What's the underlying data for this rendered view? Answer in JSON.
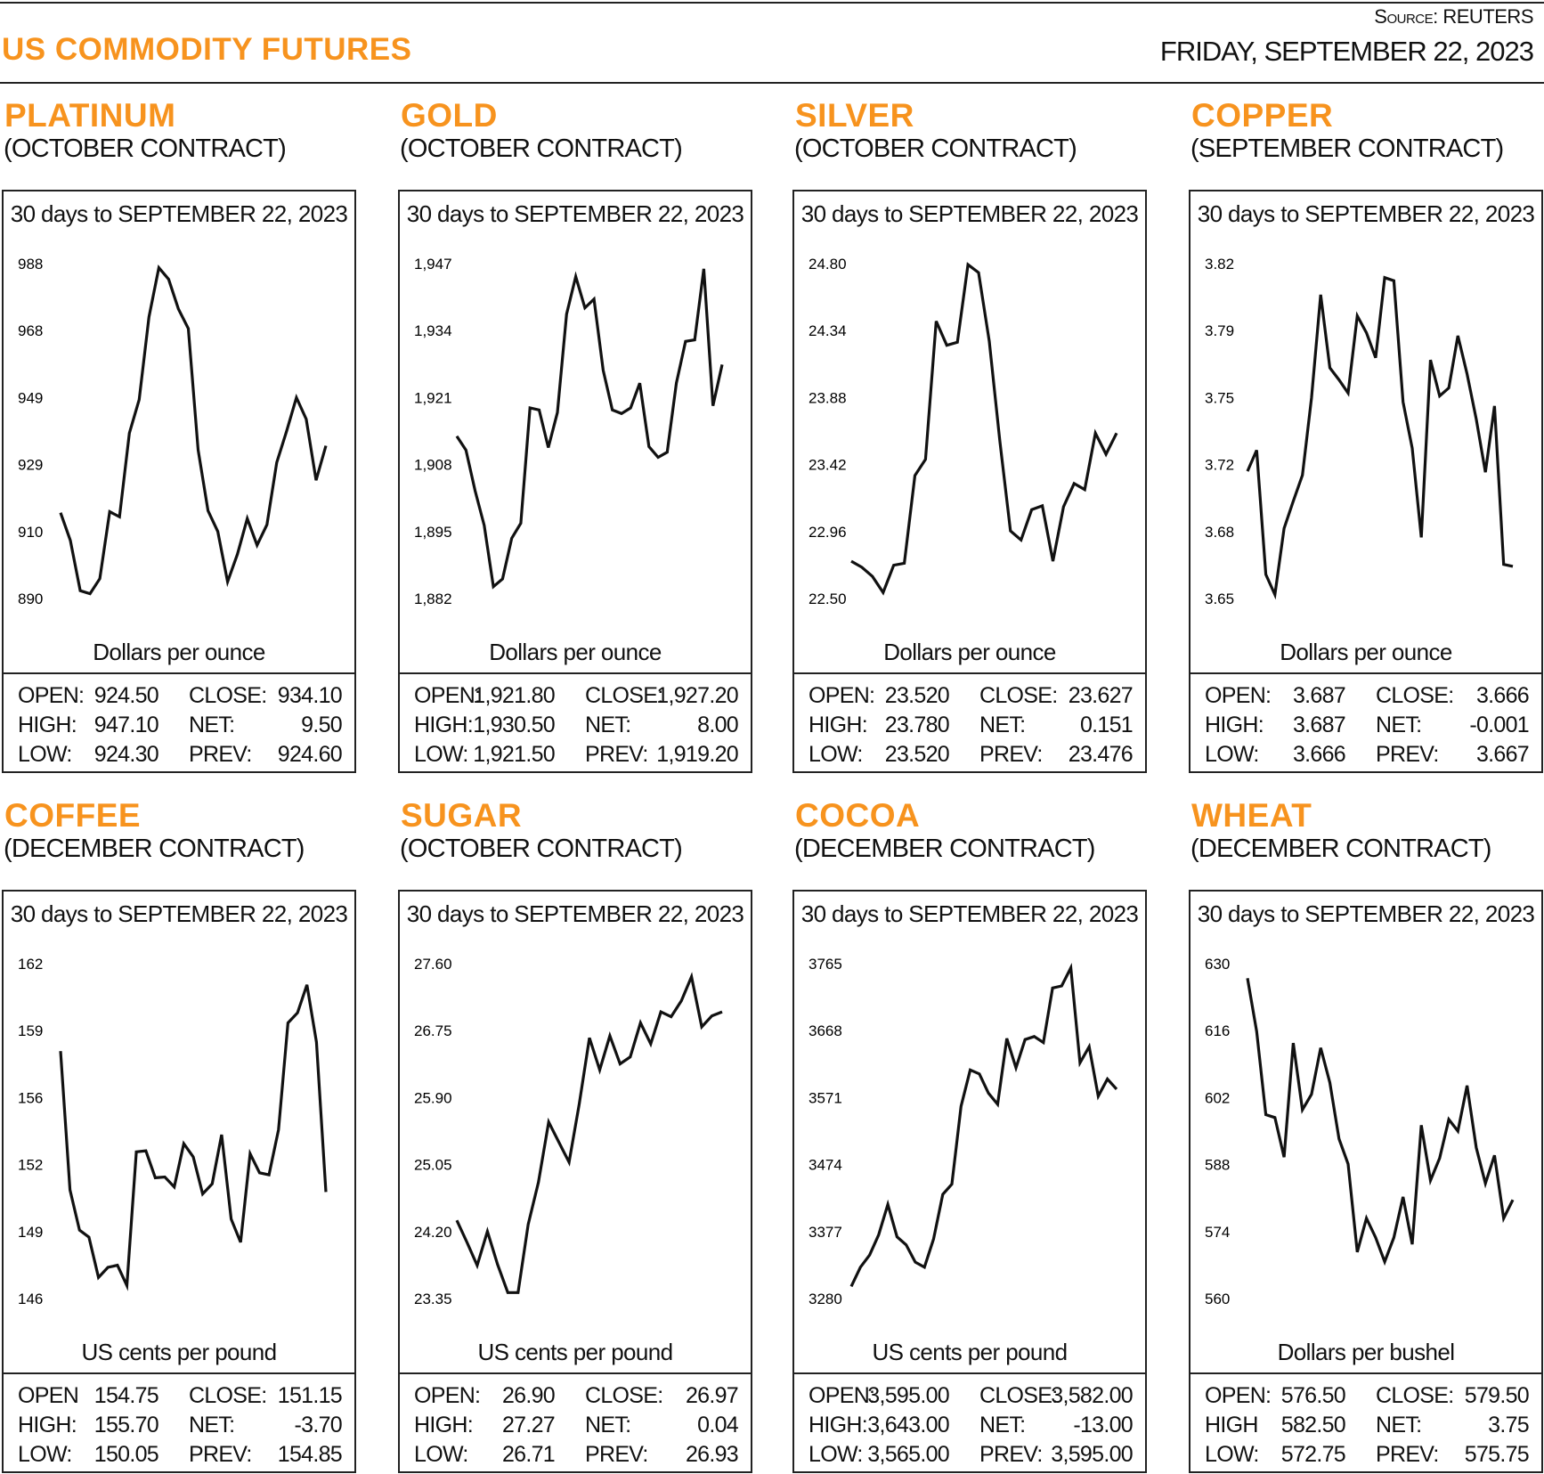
{
  "header": {
    "title": "US COMMODITY FUTURES",
    "source": "Source: REUTERS",
    "date": "FRIDAY, SEPTEMBER 22, 2023"
  },
  "colors": {
    "accent": "#f7931e",
    "line": "#111111"
  },
  "chart_data": [
    {
      "type": "line",
      "title": "PLATINUM",
      "subtitle": "(OCTOBER CONTRACT)",
      "caption": "30 days to SEPTEMBER 22, 2023",
      "ylabel": "Dollars per ounce",
      "yticks": [
        "988",
        "968",
        "949",
        "929",
        "910",
        "890"
      ],
      "ylim": [
        890,
        988
      ],
      "values": [
        915.1,
        907.0,
        892.3,
        891.4,
        895.8,
        915.4,
        913.9,
        938.4,
        948.2,
        972.4,
        986.8,
        983.4,
        974.7,
        969.0,
        933.5,
        915.7,
        909.6,
        894.9,
        903.0,
        913.4,
        905.6,
        911.6,
        929.8,
        939.0,
        948.8,
        942.5,
        924.6,
        934.7
      ],
      "stats": {
        "open_label": "OPEN:",
        "open": "924.50",
        "high_label": "HIGH:",
        "high": "947.10",
        "low_label": "LOW:",
        "low": "924.30",
        "close_label": "CLOSE:",
        "close": "934.10",
        "net_label": "NET:",
        "net": "9.50",
        "prev_label": "PREV:",
        "prev": "924.60"
      }
    },
    {
      "type": "line",
      "title": "GOLD",
      "subtitle": "(OCTOBER CONTRACT)",
      "caption": "30 days to SEPTEMBER 22, 2023",
      "ylabel": "Dollars per ounce",
      "yticks": [
        "1,947",
        "1,934",
        "1,921",
        "1,908",
        "1,895",
        "1,882"
      ],
      "ylim": [
        1882,
        1947
      ],
      "values": [
        1913.5,
        1910.8,
        1902.9,
        1896.2,
        1884.3,
        1885.8,
        1893.7,
        1896.6,
        1919.0,
        1918.6,
        1911.3,
        1918.1,
        1937.2,
        1944.5,
        1938.4,
        1940.1,
        1926.3,
        1918.6,
        1917.9,
        1919.0,
        1923.8,
        1911.5,
        1909.4,
        1910.4,
        1923.8,
        1931.9,
        1932.2,
        1946.0,
        1919.4,
        1927.4
      ],
      "stats": {
        "open_label": "OPEN:",
        "open": "1,921.80",
        "high_label": "HIGH:",
        "high": "1,930.50",
        "low_label": "LOW:",
        "low": "1,921.50",
        "close_label": "CLOSE:",
        "close": "1,927.20",
        "net_label": "NET:",
        "net": "8.00",
        "prev_label": "PREV:",
        "prev": "1,919.20"
      }
    },
    {
      "type": "line",
      "title": "SILVER",
      "subtitle": "(OCTOBER CONTRACT)",
      "caption": "30 days to SEPTEMBER 22, 2023",
      "ylabel": "Dollars per ounce",
      "yticks": [
        "24.80",
        "24.34",
        "23.88",
        "23.42",
        "22.96",
        "22.50"
      ],
      "ylim": [
        22.5,
        24.8
      ],
      "values": [
        22.756,
        22.715,
        22.652,
        22.541,
        22.729,
        22.742,
        23.345,
        23.456,
        24.405,
        24.239,
        24.26,
        24.793,
        24.738,
        24.267,
        23.581,
        22.964,
        22.902,
        23.11,
        23.137,
        22.756,
        23.13,
        23.29,
        23.248,
        23.636,
        23.491,
        23.636
      ],
      "stats": {
        "open_label": "OPEN:",
        "open": "23.520",
        "high_label": "HIGH:",
        "high": "23.780",
        "low_label": "LOW:",
        "low": "23.520",
        "close_label": "CLOSE:",
        "close": "23.627",
        "net_label": "NET:",
        "net": "0.151",
        "prev_label": "PREV:",
        "prev": "23.476"
      }
    },
    {
      "type": "line",
      "title": "COPPER",
      "subtitle": "(SEPTEMBER CONTRACT)",
      "caption": "30 days to SEPTEMBER 22, 2023",
      "ylabel": "Dollars per ounce",
      "yticks": [
        "3.82",
        "3.79",
        "3.75",
        "3.72",
        "3.68",
        "3.65"
      ],
      "ylim": [
        3.65,
        3.82
      ],
      "values": [
        3.7146,
        3.7253,
        3.6622,
        3.652,
        3.6856,
        3.6994,
        3.7126,
        3.7518,
        3.8042,
        3.7671,
        3.761,
        3.7543,
        3.7935,
        3.7849,
        3.7722,
        3.8129,
        3.8113,
        3.7498,
        3.7263,
        3.681,
        3.7711,
        3.7528,
        3.7569,
        3.7834,
        3.764,
        3.7411,
        3.7141,
        3.7477,
        3.6673,
        3.6663
      ],
      "stats": {
        "open_label": "OPEN:",
        "open": "3.687",
        "high_label": "HIGH:",
        "high": "3.687",
        "low_label": "LOW:",
        "low": "3.666",
        "close_label": "CLOSE:",
        "close": "3.666",
        "net_label": "NET:",
        "net": "-0.001",
        "prev_label": "PREV:",
        "prev": "3.667"
      }
    },
    {
      "type": "line",
      "title": "COFFEE",
      "subtitle": "(DECEMBER CONTRACT)",
      "caption": "30 days to SEPTEMBER 22, 2023",
      "ylabel": "US cents per pound",
      "yticks": [
        "162",
        "159",
        "156",
        "152",
        "149",
        "146"
      ],
      "ylim": [
        146,
        162
      ],
      "values": [
        157.82,
        151.19,
        149.27,
        148.93,
        147.01,
        147.49,
        147.59,
        146.62,
        153.01,
        153.06,
        151.77,
        151.81,
        151.33,
        153.4,
        152.77,
        151.0,
        151.48,
        153.83,
        149.8,
        148.69,
        152.92,
        152.01,
        151.91,
        154.07,
        159.17,
        159.65,
        160.99,
        158.25,
        151.09
      ],
      "stats": {
        "open_label": "OPEN",
        "open": "154.75",
        "high_label": "HIGH:",
        "high": "155.70",
        "low_label": "LOW:",
        "low": "150.05",
        "close_label": "CLOSE:",
        "close": "151.15",
        "net_label": "NET:",
        "net": "-3.70",
        "prev_label": "PREV:",
        "prev": "154.85"
      }
    },
    {
      "type": "line",
      "title": "SUGAR",
      "subtitle": "(OCTOBER CONTRACT)",
      "caption": "30 days to SEPTEMBER 22, 2023",
      "ylabel": "US cents per pound",
      "yticks": [
        "27.60",
        "26.75",
        "25.90",
        "25.05",
        "24.20",
        "23.35"
      ],
      "ylim": [
        23.35,
        27.6
      ],
      "values": [
        24.342,
        24.062,
        23.77,
        24.202,
        23.783,
        23.426,
        23.426,
        24.292,
        24.826,
        25.59,
        25.335,
        25.08,
        25.818,
        26.658,
        26.251,
        26.684,
        26.328,
        26.417,
        26.849,
        26.582,
        26.989,
        26.926,
        27.129,
        27.435,
        26.798,
        26.938,
        26.989
      ],
      "stats": {
        "open_label": "OPEN:",
        "open": "26.90",
        "high_label": "HIGH:",
        "high": "27.27",
        "low_label": "LOW:",
        "low": "26.71",
        "close_label": "CLOSE:",
        "close": "26.97",
        "net_label": "NET:",
        "net": "0.04",
        "prev_label": "PREV:",
        "prev": "26.93"
      }
    },
    {
      "type": "line",
      "title": "COCOA",
      "subtitle": "(DECEMBER CONTRACT)",
      "caption": "30 days to SEPTEMBER 22, 2023",
      "ylabel": "US cents per pound",
      "yticks": [
        "3765",
        "3668",
        "3571",
        "3474",
        "3377",
        "3280"
      ],
      "ylim": [
        3280,
        3765
      ],
      "values": [
        3297.6,
        3325.4,
        3343.0,
        3372.3,
        3416.3,
        3369.4,
        3357.6,
        3332.7,
        3325.4,
        3366.4,
        3430.9,
        3445.6,
        3558.4,
        3611.1,
        3605.3,
        3577.4,
        3561.3,
        3656.6,
        3614.1,
        3655.1,
        3659.5,
        3650.7,
        3729.8,
        3732.8,
        3759.1,
        3621.4,
        3644.8,
        3573.0,
        3598.0,
        3583.3
      ],
      "stats": {
        "open_label": "OPEN:",
        "open": "3,595.00",
        "high_label": "HIGH:",
        "high": "3,643.00",
        "low_label": "LOW:",
        "low": "3,565.00",
        "close_label": "CLOSE:",
        "close": "3,582.00",
        "net_label": "NET:",
        "net": "-13.00",
        "prev_label": "PREV:",
        "prev": "3,595.00"
      }
    },
    {
      "type": "line",
      "title": "WHEAT",
      "subtitle": "(DECEMBER CONTRACT)",
      "caption": "30 days to SEPTEMBER 22, 2023",
      "ylabel": "Dollars per bushel",
      "yticks": [
        "630",
        "616",
        "602",
        "588",
        "574",
        "560"
      ],
      "ylim": [
        560,
        630
      ],
      "values": [
        626.97,
        615.84,
        598.44,
        597.83,
        589.54,
        613.41,
        599.45,
        602.69,
        612.4,
        605.12,
        593.38,
        588.12,
        569.71,
        576.79,
        572.75,
        567.69,
        572.75,
        581.25,
        571.33,
        596.22,
        584.69,
        589.34,
        597.43,
        595.0,
        604.51,
        591.56,
        584.08,
        589.93,
        576.78,
        580.63
      ],
      "stats": {
        "open_label": "OPEN:",
        "open": "576.50",
        "high_label": "HIGH",
        "high": "582.50",
        "low_label": "LOW:",
        "low": "572.75",
        "close_label": "CLOSE:",
        "close": "579.50",
        "net_label": "NET:",
        "net": "3.75",
        "prev_label": "PREV:",
        "prev": "575.75"
      }
    }
  ]
}
